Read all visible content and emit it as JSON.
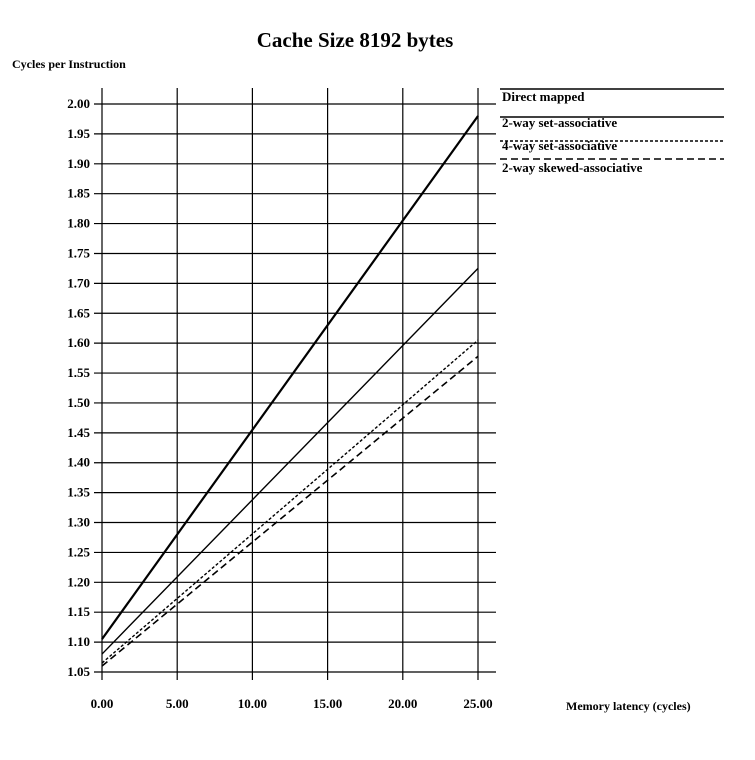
{
  "chart_data": {
    "type": "line",
    "title": "Cache Size 8192 bytes",
    "ylabel": "Cycles per Instruction",
    "xlabel": "Memory latency (cycles)",
    "xlim": [
      0,
      25
    ],
    "ylim": [
      1.05,
      2.0
    ],
    "x_ticks": [
      "0.00",
      "5.00",
      "10.00",
      "15.00",
      "20.00",
      "25.00"
    ],
    "y_ticks": [
      "2.00",
      "1.95",
      "1.90",
      "1.85",
      "1.80",
      "1.75",
      "1.70",
      "1.65",
      "1.60",
      "1.55",
      "1.50",
      "1.45",
      "1.40",
      "1.35",
      "1.30",
      "1.25",
      "1.20",
      "1.15",
      "1.10",
      "1.05"
    ],
    "grid": true,
    "legend_position": "top-right",
    "series": [
      {
        "name": "Direct mapped",
        "style": "solid",
        "width": 2.2,
        "x": [
          0,
          25
        ],
        "y": [
          1.105,
          1.98
        ]
      },
      {
        "name": "2-way set-associative",
        "style": "solid",
        "width": 1.4,
        "x": [
          0,
          25
        ],
        "y": [
          1.08,
          1.725
        ]
      },
      {
        "name": "4-way set-associative",
        "style": "dotted",
        "width": 1.4,
        "x": [
          0,
          25
        ],
        "y": [
          1.065,
          1.605
        ]
      },
      {
        "name": "2-way skewed-associative",
        "style": "dashed",
        "width": 1.6,
        "x": [
          0,
          25
        ],
        "y": [
          1.06,
          1.578
        ]
      }
    ]
  }
}
